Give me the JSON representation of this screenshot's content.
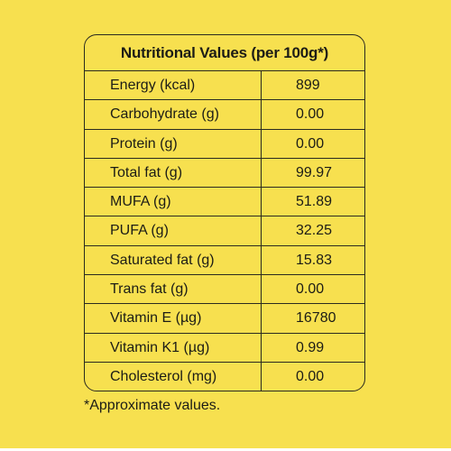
{
  "panel_color": "#f7e04f",
  "title": "Nutritional Values (per 100g*)",
  "rows": [
    {
      "label": "Energy (kcal)",
      "value": "899"
    },
    {
      "label": "Carbohydrate (g)",
      "value": "0.00"
    },
    {
      "label": "Protein (g)",
      "value": "0.00"
    },
    {
      "label": "Total fat (g)",
      "value": "99.97"
    },
    {
      "label": "MUFA (g)",
      "value": "51.89"
    },
    {
      "label": "PUFA (g)",
      "value": "32.25"
    },
    {
      "label": "Saturated fat (g)",
      "value": "15.83"
    },
    {
      "label": "Trans fat (g)",
      "value": "0.00"
    },
    {
      "label": "Vitamin E (µg)",
      "value": "16780"
    },
    {
      "label": "Vitamin K1 (µg)",
      "value": "0.99"
    },
    {
      "label": "Cholesterol (mg)",
      "value": "0.00"
    }
  ],
  "footnote": "*Approximate values."
}
